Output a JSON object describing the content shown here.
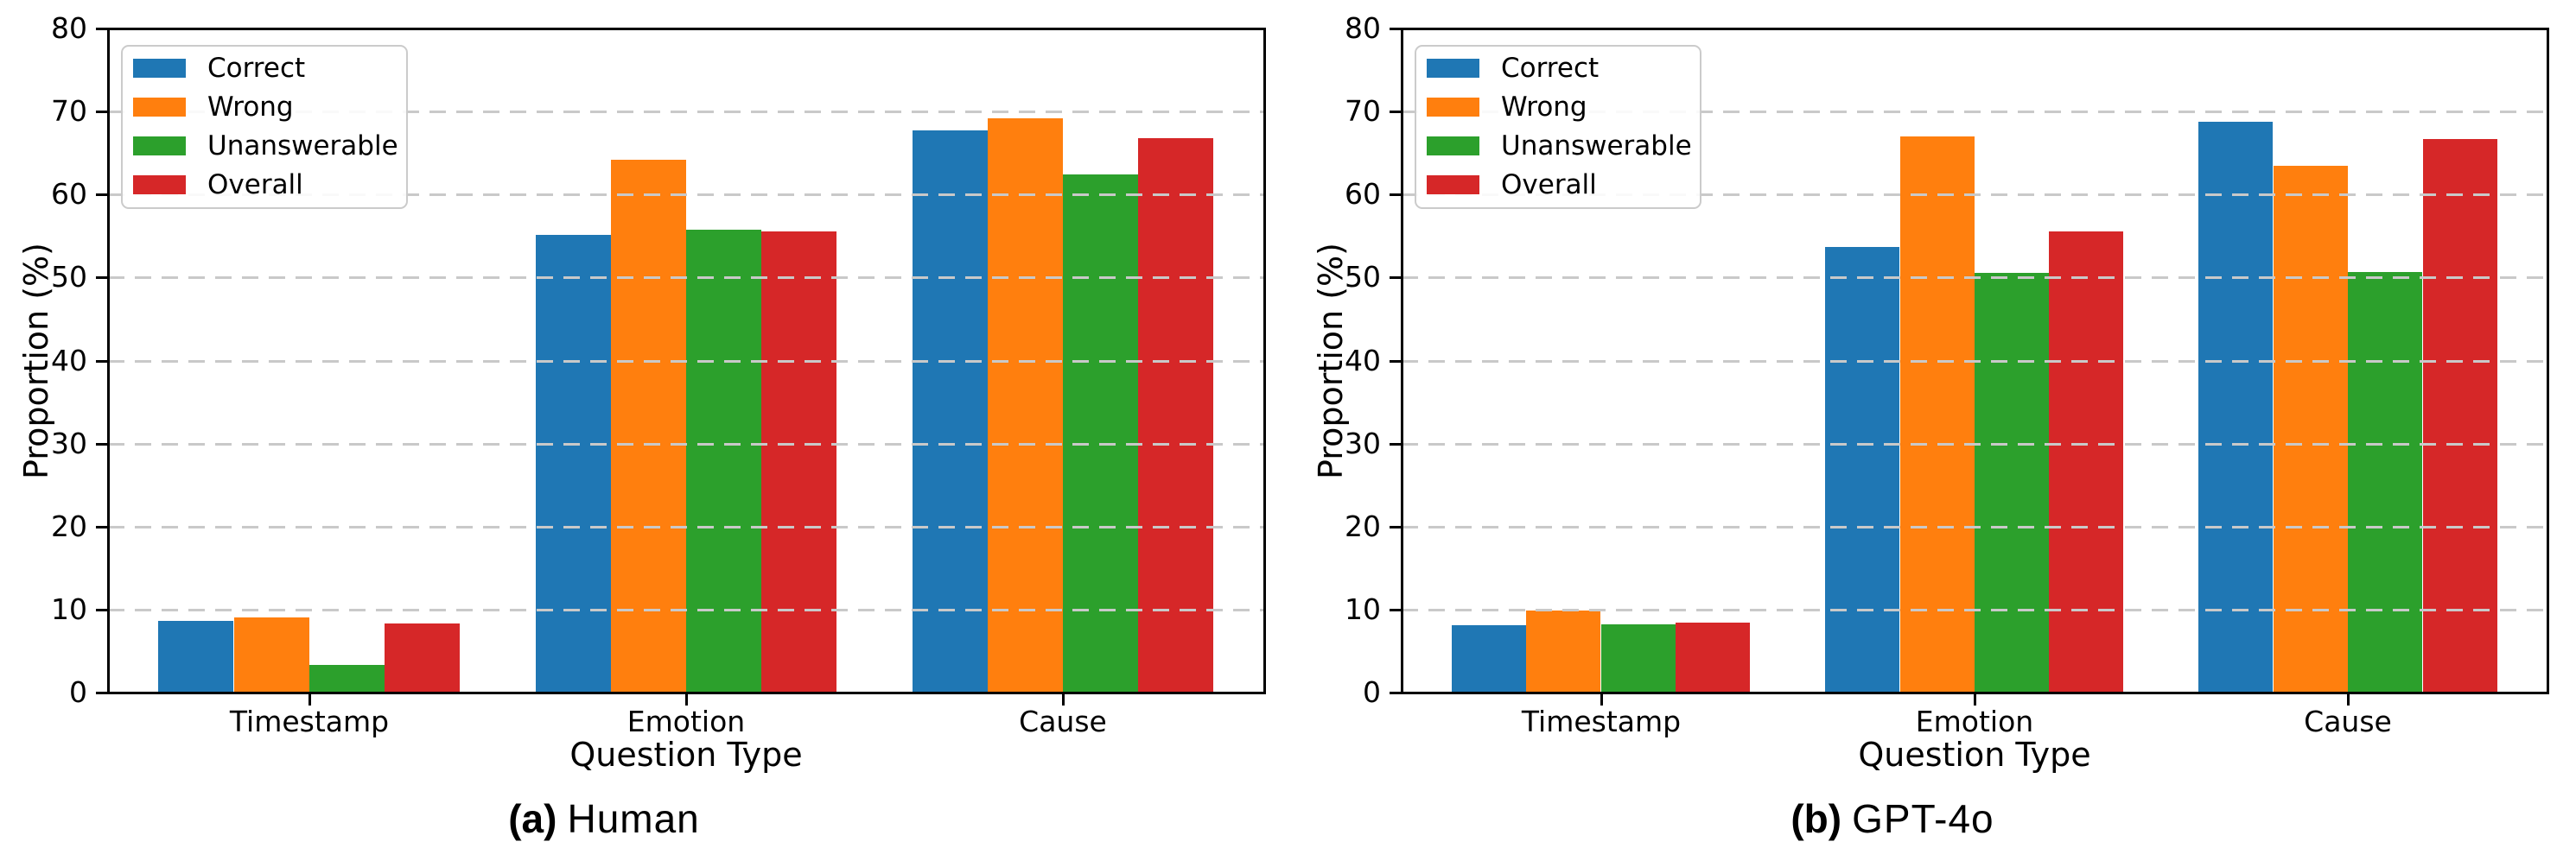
{
  "style": {
    "background": "#ffffff",
    "spine_color": "#000000",
    "grid_color": "#c9c9c9",
    "legend_border": "#cbcbcb",
    "series_colors": {
      "correct": "#1f77b4",
      "wrong": "#ff7f0e",
      "unanswerable": "#2ca02c",
      "overall": "#d62728"
    }
  },
  "chart_data": [
    {
      "id": "human",
      "type": "bar",
      "caption_prefix": "(a)",
      "caption_title": "Human",
      "xlabel": "Question Type",
      "ylabel": "Proportion (%)",
      "ylim": [
        0,
        80
      ],
      "ytick_step": 10,
      "grid": "horizontal dashed, drawn over bars",
      "legend_position": "upper left",
      "categories": [
        "Timestamp",
        "Emotion",
        "Cause"
      ],
      "series": [
        {
          "name": "Correct",
          "color": "#1f77b4",
          "values": [
            8.6,
            55.1,
            67.7
          ]
        },
        {
          "name": "Wrong",
          "color": "#ff7f0e",
          "values": [
            9.0,
            64.2,
            69.2
          ]
        },
        {
          "name": "Unanswerable",
          "color": "#2ca02c",
          "values": [
            3.3,
            55.8,
            62.4
          ]
        },
        {
          "name": "Overall",
          "color": "#d62728",
          "values": [
            8.3,
            55.6,
            66.8
          ]
        }
      ]
    },
    {
      "id": "gpt4o",
      "type": "bar",
      "caption_prefix": "(b)",
      "caption_title": "GPT-4o",
      "xlabel": "Question Type",
      "ylabel": "Proportion (%)",
      "ylim": [
        0,
        80
      ],
      "ytick_step": 10,
      "grid": "horizontal dashed, drawn over bars",
      "legend_position": "upper left",
      "categories": [
        "Timestamp",
        "Emotion",
        "Cause"
      ],
      "series": [
        {
          "name": "Correct",
          "color": "#1f77b4",
          "values": [
            8.1,
            53.7,
            68.8
          ]
        },
        {
          "name": "Wrong",
          "color": "#ff7f0e",
          "values": [
            9.9,
            67.0,
            63.5
          ]
        },
        {
          "name": "Unanswerable",
          "color": "#2ca02c",
          "values": [
            8.2,
            50.6,
            50.7
          ]
        },
        {
          "name": "Overall",
          "color": "#d62728",
          "values": [
            8.4,
            55.6,
            66.7
          ]
        }
      ]
    }
  ]
}
